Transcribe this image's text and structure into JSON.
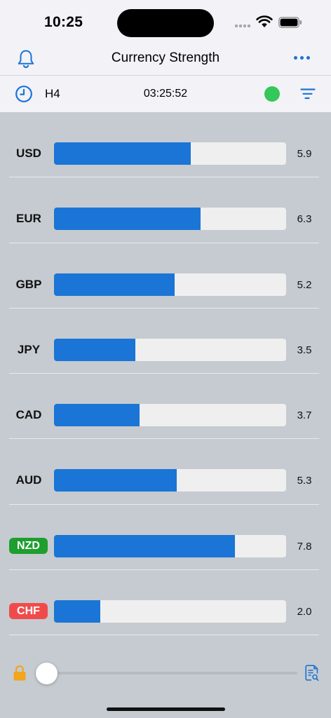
{
  "status": {
    "time": "10:25"
  },
  "nav": {
    "title": "Currency Strength"
  },
  "toolbar": {
    "timeframe": "H4",
    "countdown": "03:25:52",
    "connection_color": "#34c759"
  },
  "colors": {
    "bar": "#1a75d6",
    "track": "#efefef",
    "accent": "#1a73d6",
    "positive_tag": "#1e9e2e",
    "negative_tag": "#f04b4b"
  },
  "scale_max": 10,
  "currencies": [
    {
      "code": "USD",
      "value": 5.9,
      "tag": ""
    },
    {
      "code": "EUR",
      "value": 6.3,
      "tag": ""
    },
    {
      "code": "GBP",
      "value": 5.2,
      "tag": ""
    },
    {
      "code": "JPY",
      "value": 3.5,
      "tag": ""
    },
    {
      "code": "CAD",
      "value": 3.7,
      "tag": ""
    },
    {
      "code": "AUD",
      "value": 5.3,
      "tag": ""
    },
    {
      "code": "NZD",
      "value": 7.8,
      "tag": "strongest"
    },
    {
      "code": "CHF",
      "value": 2.0,
      "tag": "weakest"
    }
  ],
  "slider": {
    "level": 0
  }
}
